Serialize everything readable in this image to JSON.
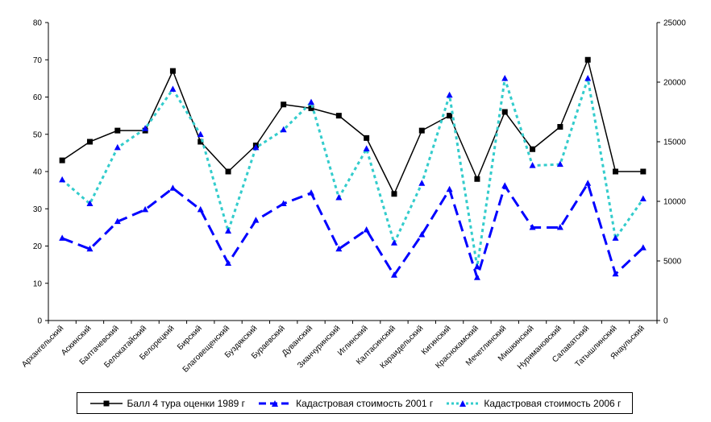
{
  "chart_data": {
    "type": "line",
    "categories": [
      "Архангельский",
      "Аскинский",
      "Балтачевский",
      "Белокатайский",
      "Белорецкий",
      "Бирский",
      "Благовещенский",
      "Буздякский",
      "Бураевский",
      "Дуванский",
      "Зианчуринский",
      "Иглинский",
      "Калтасинский",
      "Караидельский",
      "Кигинский",
      "Краснокамский",
      "Мечетлинский",
      "Мишкинский",
      "Нуримановский",
      "Салаватский",
      "Татышлинский",
      "Янаульский"
    ],
    "series": [
      {
        "name": "Балл 4 тура оценки 1989 г",
        "axis": "left",
        "color": "#000000",
        "values": [
          43,
          48,
          51,
          51,
          67,
          48,
          40,
          47,
          58,
          57,
          55,
          49,
          34,
          51,
          55,
          38,
          56,
          46,
          52,
          70,
          40,
          40
        ]
      },
      {
        "name": "Кадастровая стоимость 2001 г",
        "axis": "right",
        "color": "#0000FF",
        "values": [
          6900,
          6000,
          8300,
          9300,
          11100,
          9300,
          4800,
          8400,
          9800,
          10700,
          6000,
          7600,
          3800,
          7200,
          11000,
          3600,
          11300,
          7800,
          7800,
          11500,
          3900,
          6100
        ]
      },
      {
        "name": "Кадастровая стоимость 2006 г",
        "axis": "right",
        "color": "#33CCCC",
        "values": [
          11800,
          9800,
          14500,
          16100,
          19400,
          15600,
          7500,
          14500,
          16000,
          18300,
          10300,
          14400,
          6500,
          11500,
          18900,
          4500,
          20300,
          13000,
          13100,
          20300,
          6900,
          10200
        ]
      }
    ],
    "y_left": {
      "min": 0,
      "max": 80,
      "ticks": [
        0,
        10,
        20,
        30,
        40,
        50,
        60,
        70,
        80
      ]
    },
    "y_right": {
      "min": 0,
      "max": 25000,
      "ticks": [
        0,
        5000,
        10000,
        15000,
        20000,
        25000
      ]
    },
    "grid": false,
    "legend_position": "bottom"
  }
}
